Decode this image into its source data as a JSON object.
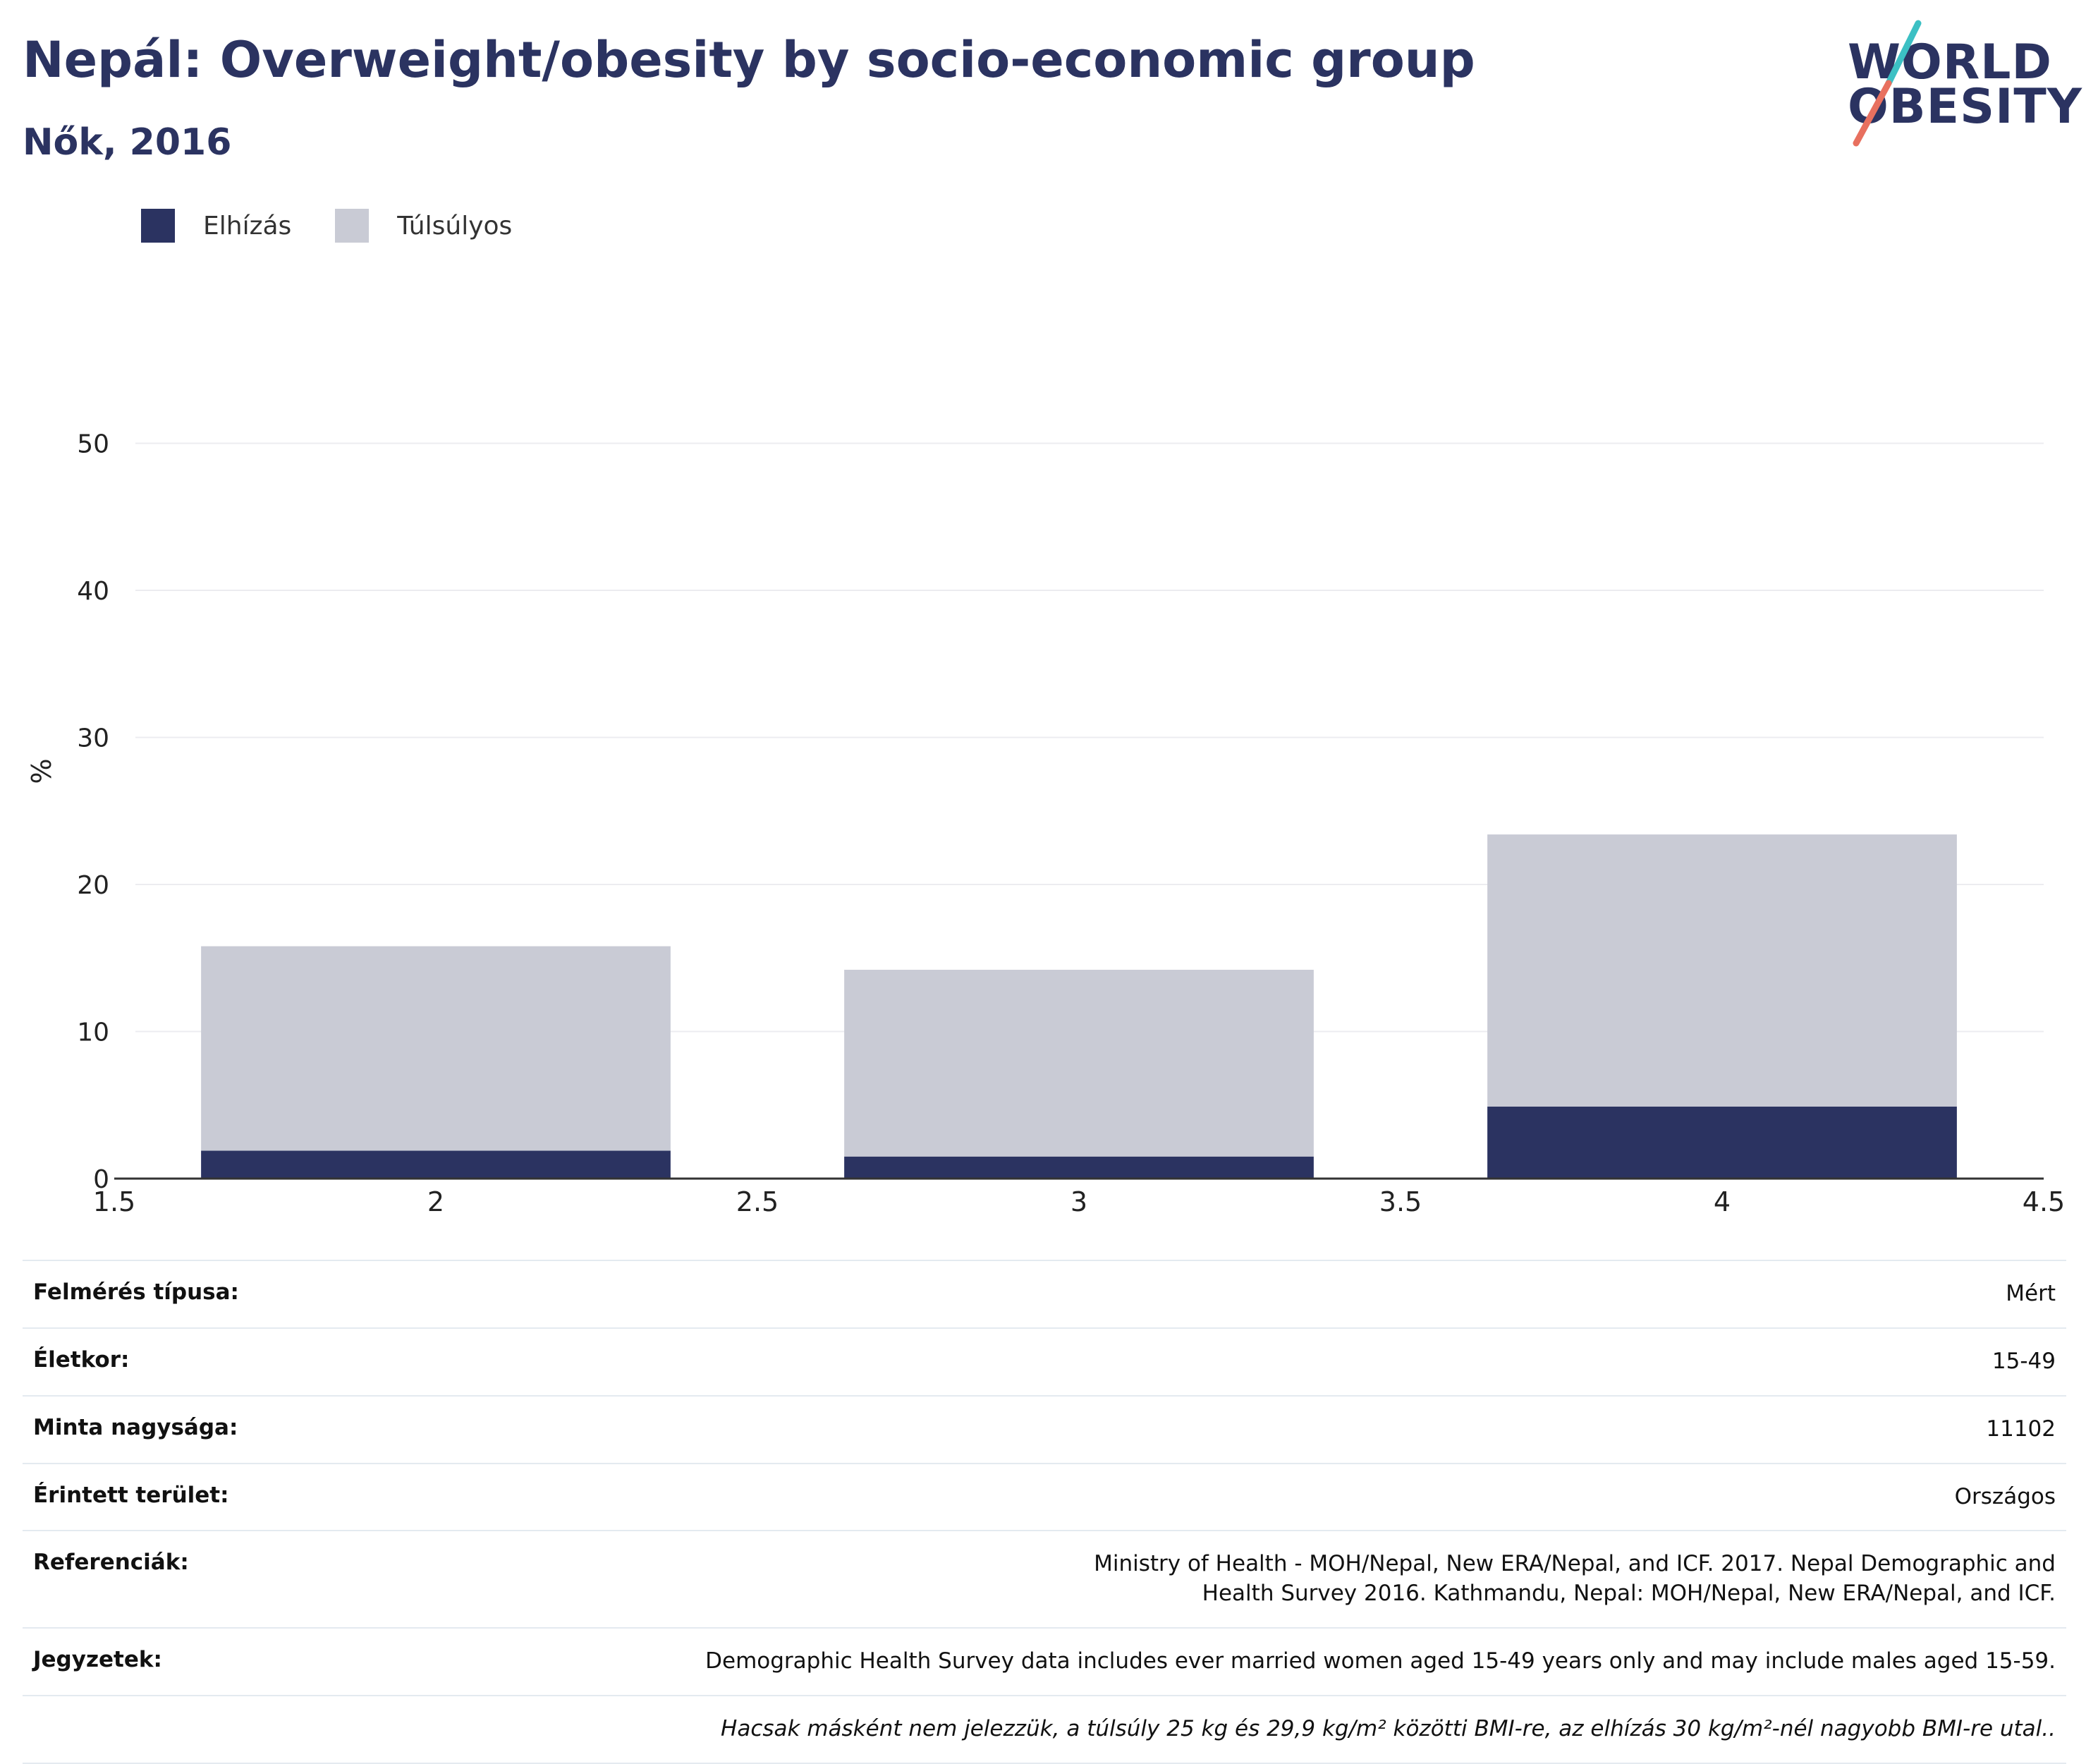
{
  "header": {
    "title": "Nepál: Overweight/obesity by socio-economic group",
    "subtitle": "Nők, 2016"
  },
  "logo": {
    "line1": "WORLD",
    "line2": "OBESITY",
    "colors": {
      "text": "#2b3361",
      "slash_top": "#3cc0c4",
      "slash_bottom": "#e8705f"
    }
  },
  "legend": [
    {
      "label": "Elhízás",
      "color": "#2b3361"
    },
    {
      "label": "Túlsúlyos",
      "color": "#c9cbd5"
    }
  ],
  "chart_data": {
    "type": "bar",
    "stacked": true,
    "x": [
      2,
      3,
      4
    ],
    "xlim": [
      1.5,
      4.5
    ],
    "xticks": [
      "1.5",
      "2",
      "2.5",
      "3",
      "3.5",
      "4",
      "4.5"
    ],
    "ylim": [
      0,
      60
    ],
    "yticks": [
      "0",
      "10",
      "20",
      "30",
      "40",
      "50"
    ],
    "ylabel": "%",
    "xlabel": "",
    "grid": true,
    "legend_position": "top-left",
    "series": [
      {
        "name": "Elhízás",
        "color": "#2b3361",
        "values": [
          1.9,
          1.5,
          4.9
        ]
      },
      {
        "name": "Túlsúlyos",
        "color": "#c9cbd5",
        "values": [
          13.9,
          12.7,
          18.5
        ]
      }
    ]
  },
  "info": [
    {
      "label": "Felmérés típusa:",
      "value": "Mért"
    },
    {
      "label": "Életkor:",
      "value": "15-49"
    },
    {
      "label": "Minta nagysága:",
      "value": "11102"
    },
    {
      "label": "Érintett terület:",
      "value": "Országos"
    },
    {
      "label": "Referenciák:",
      "value": "Ministry of Health - MOH/Nepal, New ERA/Nepal, and ICF. 2017. Nepal Demographic and Health Survey 2016. Kathmandu, Nepal: MOH/Nepal, New ERA/Nepal, and ICF."
    },
    {
      "label": "Jegyzetek:",
      "value": "Demographic Health Survey data includes ever married women aged 15-49 years only and may include males aged 15-59."
    },
    {
      "label": "",
      "value": "Hacsak másként nem jelezzük, a túlsúly 25 kg és 29,9 kg/m² közötti BMI-re, az elhízás 30 kg/m²-nél nagyobb BMI-re utal.."
    }
  ]
}
